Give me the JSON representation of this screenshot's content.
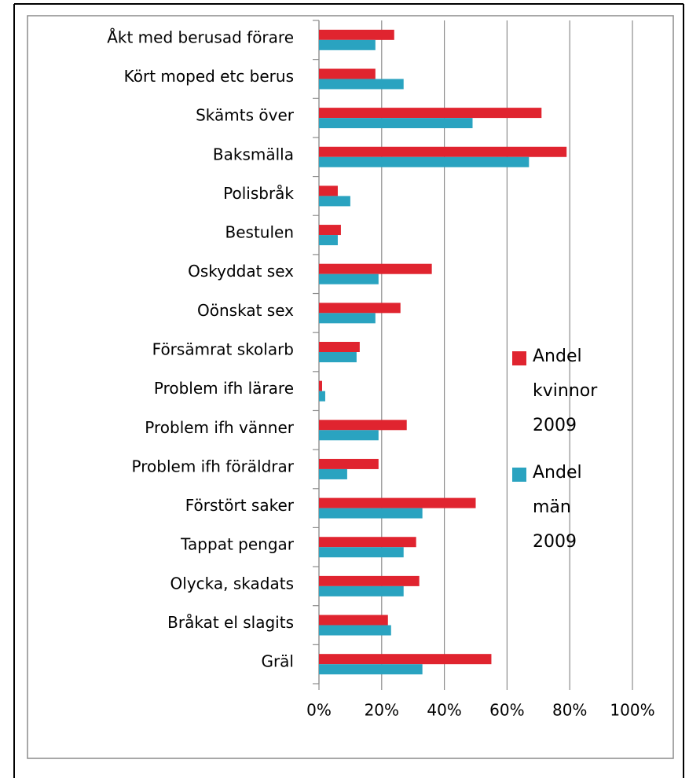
{
  "chart_data": {
    "type": "bar",
    "orientation": "horizontal",
    "categories": [
      "Åkt med berusad förare",
      "Kört moped etc berus",
      "Skämts över",
      "Baksmälla",
      "Polisbråk",
      "Bestulen",
      "Oskyddat sex",
      "Oönskat sex",
      "Försämrat skolarb",
      "Problem ifh lärare",
      "Problem ifh vänner",
      "Problem ifh föräldrar",
      "Förstört saker",
      "Tappat pengar",
      "Olycka, skadats",
      "Bråkat el slagits",
      "Gräl"
    ],
    "series": [
      {
        "name": "Andel kvinnor 2009",
        "color": "#e0242f",
        "values": [
          24,
          18,
          71,
          79,
          6,
          7,
          36,
          26,
          13,
          1,
          28,
          19,
          50,
          31,
          32,
          22,
          55
        ]
      },
      {
        "name": "Andel män 2009",
        "color": "#2aa3c0",
        "values": [
          18,
          27,
          49,
          67,
          10,
          6,
          19,
          18,
          12,
          2,
          19,
          9,
          33,
          27,
          27,
          23,
          33
        ]
      }
    ],
    "xlim": [
      0,
      100
    ],
    "xticks": [
      {
        "value": 0,
        "label": "0%"
      },
      {
        "value": 20,
        "label": "20%"
      },
      {
        "value": 40,
        "label": "40%"
      },
      {
        "value": 60,
        "label": "60%"
      },
      {
        "value": 80,
        "label": "80%"
      },
      {
        "value": 100,
        "label": "100%"
      }
    ],
    "grid": true,
    "legend": "right"
  }
}
